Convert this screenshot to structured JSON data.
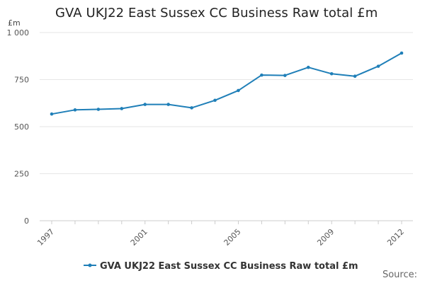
{
  "chart_data": {
    "type": "line",
    "title": "GVA UKJ22 East Sussex CC Business Raw total £m",
    "y_unit": "£m",
    "xlabel": "",
    "ylabel": "",
    "x": [
      1997,
      1998,
      1999,
      2000,
      2001,
      2002,
      2003,
      2004,
      2005,
      2006,
      2007,
      2008,
      2009,
      2010,
      2011,
      2012
    ],
    "x_tick_labels": [
      "1997",
      "2001",
      "2005",
      "2009",
      "2012"
    ],
    "series": [
      {
        "name": "GVA UKJ22 East Sussex CC Business Raw total £m",
        "color": "#1f7fb8",
        "values": [
          567,
          589,
          592,
          596,
          618,
          618,
          600,
          640,
          692,
          774,
          772,
          815,
          781,
          768,
          821,
          891
        ]
      }
    ],
    "ylim": [
      0,
      1000
    ],
    "y_ticks": [
      0,
      250,
      500,
      750,
      1000
    ],
    "y_tick_labels": [
      "0",
      "250",
      "500",
      "750",
      "1 000"
    ],
    "grid": "horizontal",
    "legend_position": "bottom-center",
    "source_label": "Source:"
  }
}
